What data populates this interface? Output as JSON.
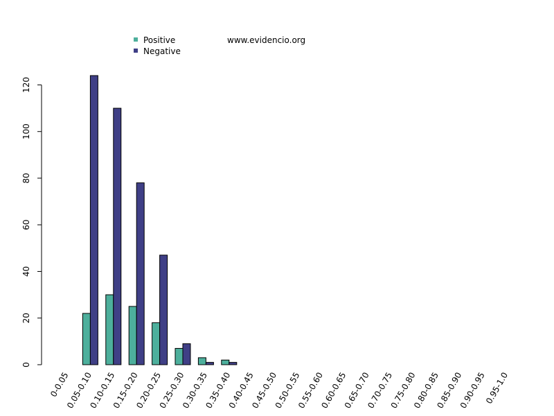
{
  "watermark": "www.evidencio.org",
  "colors": {
    "positive": "#4daf9c",
    "negative": "#3f3f86"
  },
  "chart_data": {
    "type": "bar",
    "categories": [
      "0-0.05",
      "0.05-0.10",
      "0.10-0.15",
      "0.15-0.20",
      "0.20-0.25",
      "0.25-0.30",
      "0.30-0.35",
      "0.35-0.40",
      "0.40-0.45",
      "0.45-0.50",
      "0.50-0.55",
      "0.55-0.60",
      "0.60-0.65",
      "0.65-0.70",
      "0.70-0.75",
      "0.75-0.80",
      "0.80-0.85",
      "0.85-0.90",
      "0.90-0.95",
      "0.95-1.0"
    ],
    "series": [
      {
        "name": "Positive",
        "values": [
          0,
          22,
          30,
          25,
          18,
          7,
          3,
          2,
          0,
          0,
          0,
          0,
          0,
          0,
          0,
          0,
          0,
          0,
          0,
          0
        ]
      },
      {
        "name": "Negative",
        "values": [
          0,
          124,
          110,
          78,
          47,
          9,
          1,
          1,
          0,
          0,
          0,
          0,
          0,
          0,
          0,
          0,
          0,
          0,
          0,
          0
        ]
      }
    ],
    "yticks": [
      0,
      20,
      40,
      60,
      80,
      100,
      120
    ],
    "ylim": [
      0,
      124
    ],
    "grid": false,
    "legend": "top-left"
  }
}
